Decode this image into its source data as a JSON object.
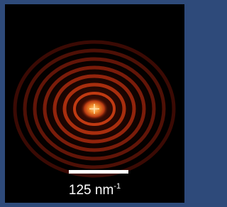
{
  "scale_bar": {
    "text": "125 nm",
    "superscript": "-1"
  }
}
